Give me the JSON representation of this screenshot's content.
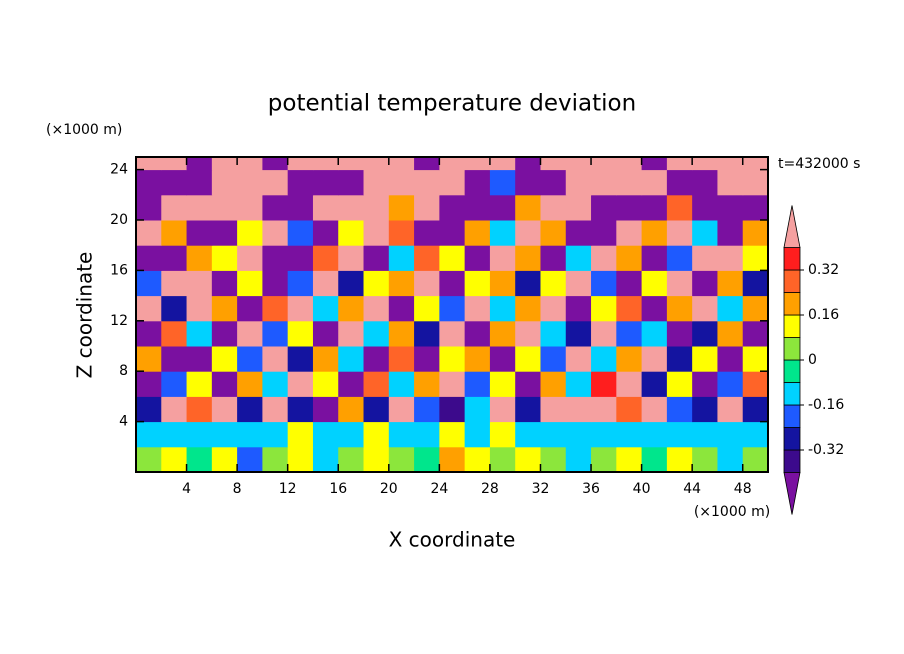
{
  "chart_data": {
    "type": "heatmap",
    "title": "potential temperature deviation",
    "x_label": "X coordinate",
    "y_label": "Z coordinate",
    "x_unit": "(×1000 m)",
    "y_unit": "(×1000 m)",
    "annotation": "t=432000 s",
    "xlim": [
      0,
      50
    ],
    "ylim": [
      0,
      25
    ],
    "xticks": [
      4,
      8,
      12,
      16,
      20,
      24,
      28,
      32,
      36,
      40,
      44,
      48
    ],
    "yticks": [
      4,
      8,
      12,
      16,
      20,
      24
    ],
    "x_edges": [
      0,
      2,
      4,
      6,
      8,
      10,
      12,
      14,
      16,
      18,
      20,
      22,
      24,
      26,
      28,
      30,
      32,
      34,
      36,
      38,
      40,
      42,
      44,
      46,
      48,
      50
    ],
    "z_edges": [
      0,
      2,
      4,
      6,
      8,
      10,
      12,
      14,
      16,
      18,
      20,
      22,
      24,
      25
    ],
    "values": [
      [
        0.05,
        0.1,
        -0.05,
        0.1,
        -0.2,
        0.05,
        0.12,
        -0.1,
        0.02,
        0.15,
        0.05,
        -0.05,
        0.2,
        0.1,
        0.05,
        0.15,
        0.02,
        -0.1,
        0.05,
        0.1,
        -0.05,
        0.1,
        0.02,
        -0.12,
        0.05
      ],
      [
        -0.12,
        -0.12,
        -0.1,
        -0.14,
        -0.12,
        -0.1,
        0.1,
        -0.12,
        -0.12,
        0.15,
        -0.1,
        -0.12,
        0.1,
        -0.12,
        0.12,
        -0.1,
        -0.12,
        -0.12,
        -0.12,
        -0.1,
        -0.14,
        -0.12,
        -0.12,
        -0.14,
        -0.12
      ],
      [
        -0.3,
        0.45,
        0.3,
        0.45,
        -0.25,
        0.45,
        -0.3,
        -0.45,
        0.2,
        -0.3,
        0.45,
        -0.2,
        -0.35,
        -0.1,
        0.45,
        -0.3,
        0.45,
        0.45,
        0.45,
        0.3,
        0.45,
        -0.2,
        -0.3,
        0.45,
        -0.25
      ],
      [
        -0.45,
        -0.2,
        0.1,
        -0.45,
        0.2,
        -0.1,
        0.45,
        0.1,
        -0.45,
        0.3,
        -0.1,
        0.2,
        0.45,
        -0.2,
        0.1,
        -0.45,
        0.2,
        -0.1,
        0.35,
        0.45,
        -0.3,
        0.1,
        -0.45,
        -0.2,
        0.3
      ],
      [
        0.2,
        -0.45,
        -0.45,
        0.1,
        -0.2,
        0.45,
        -0.3,
        0.2,
        -0.1,
        -0.45,
        0.3,
        -0.45,
        0.1,
        0.2,
        -0.45,
        0.1,
        -0.2,
        0.45,
        -0.1,
        0.2,
        0.45,
        -0.3,
        0.1,
        -0.45,
        0.1
      ],
      [
        -0.45,
        0.3,
        -0.1,
        -0.45,
        0.45,
        -0.2,
        0.1,
        -0.45,
        0.45,
        -0.1,
        0.2,
        -0.3,
        0.45,
        -0.45,
        0.2,
        0.45,
        -0.1,
        -0.3,
        0.45,
        -0.2,
        -0.1,
        -0.45,
        -0.3,
        0.2,
        -0.45
      ],
      [
        0.45,
        -0.3,
        0.45,
        0.2,
        -0.45,
        0.3,
        0.45,
        -0.1,
        0.2,
        0.45,
        -0.45,
        0.1,
        -0.2,
        0.45,
        -0.1,
        0.2,
        0.45,
        -0.45,
        0.1,
        0.3,
        -0.45,
        0.2,
        0.45,
        -0.1,
        0.2
      ],
      [
        -0.2,
        0.45,
        0.45,
        -0.45,
        0.1,
        -0.45,
        -0.2,
        0.45,
        -0.3,
        0.1,
        0.2,
        0.45,
        -0.45,
        0.1,
        0.2,
        -0.3,
        0.1,
        0.45,
        -0.2,
        -0.45,
        0.1,
        0.45,
        -0.45,
        0.2,
        -0.3
      ],
      [
        -0.45,
        -0.45,
        0.2,
        0.1,
        0.45,
        -0.45,
        -0.45,
        0.3,
        0.45,
        -0.45,
        -0.1,
        0.3,
        0.1,
        -0.45,
        0.45,
        0.2,
        -0.45,
        -0.1,
        0.45,
        0.2,
        -0.45,
        -0.2,
        0.45,
        0.45,
        0.1
      ],
      [
        0.45,
        0.2,
        -0.45,
        -0.45,
        0.1,
        0.45,
        -0.2,
        -0.45,
        0.1,
        0.45,
        0.3,
        -0.45,
        -0.45,
        0.2,
        -0.1,
        0.45,
        0.2,
        -0.45,
        -0.45,
        0.45,
        0.2,
        0.45,
        -0.1,
        -0.45,
        0.2
      ],
      [
        -0.45,
        0.45,
        0.45,
        0.45,
        0.45,
        -0.45,
        -0.45,
        0.45,
        0.45,
        0.45,
        0.2,
        0.45,
        -0.45,
        -0.45,
        -0.45,
        0.2,
        0.45,
        0.45,
        -0.45,
        -0.45,
        -0.45,
        0.3,
        -0.45,
        -0.45,
        -0.45
      ],
      [
        -0.45,
        -0.45,
        -0.45,
        0.45,
        0.45,
        0.45,
        -0.45,
        -0.45,
        -0.45,
        0.45,
        0.45,
        0.45,
        0.45,
        -0.45,
        -0.2,
        -0.45,
        -0.45,
        0.45,
        0.45,
        0.45,
        0.45,
        -0.45,
        -0.45,
        0.45,
        0.45
      ],
      [
        0.45,
        0.45,
        -0.45,
        0.45,
        0.45,
        -0.45,
        0.45,
        0.45,
        0.45,
        0.45,
        0.45,
        -0.45,
        0.45,
        0.45,
        0.45,
        -0.45,
        0.45,
        0.45,
        0.45,
        0.45,
        -0.45,
        0.45,
        0.45,
        0.45,
        0.45
      ]
    ],
    "levels": [
      -0.4,
      -0.32,
      -0.24,
      -0.16,
      -0.08,
      0,
      0.08,
      0.16,
      0.24,
      0.32,
      0.4
    ],
    "colors": [
      "#7a10a0",
      "#3c0a8c",
      "#1414a0",
      "#1e5aff",
      "#00d2ff",
      "#00e68c",
      "#8ce63c",
      "#ffff00",
      "#ffa000",
      "#ff6428",
      "#ff1e1e",
      "#f5a0a0"
    ],
    "colorbar_ticks": [
      -0.32,
      -0.16,
      0,
      0.16,
      0.32
    ]
  }
}
